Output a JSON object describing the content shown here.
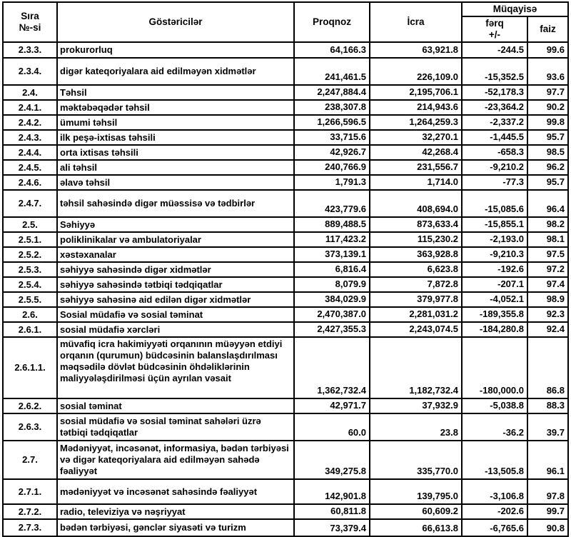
{
  "table": {
    "header": {
      "col_sira": "Sıra\n№-si",
      "col_gostericiler": "Göstəricilər",
      "col_proqnoz": "Proqnoz",
      "col_icra": "İcra",
      "col_muqayise": "Müqayisə",
      "col_ferq": "fərq\n+/-",
      "col_faiz": "faiz"
    },
    "rows": [
      {
        "no": "2.3.3.",
        "label": "prokurorluq",
        "proqnoz": "64,166.3",
        "icra": "63,921.8",
        "ferq": "-244.5",
        "faiz": "99.6"
      },
      {
        "no": "2.3.4.",
        "label": "digər kateqoriyalara aid edilməyən xidmətlər",
        "proqnoz": "241,461.5",
        "icra": "226,109.0",
        "ferq": "-15,352.5",
        "faiz": "93.6"
      },
      {
        "no": "2.4.",
        "label": "Təhsil",
        "proqnoz": "2,247,884.4",
        "icra": "2,195,706.1",
        "ferq": "-52,178.3",
        "faiz": "97.7"
      },
      {
        "no": "2.4.1.",
        "label": "məktəbəqədər təhsil",
        "proqnoz": "238,307.8",
        "icra": "214,943.6",
        "ferq": "-23,364.2",
        "faiz": "90.2"
      },
      {
        "no": "2.4.2.",
        "label": "ümumi təhsil",
        "proqnoz": "1,266,596.5",
        "icra": "1,264,259.3",
        "ferq": "-2,337.2",
        "faiz": "99.8"
      },
      {
        "no": "2.4.3.",
        "label": "ilk peşə-ixtisas təhsili",
        "proqnoz": "33,715.6",
        "icra": "32,270.1",
        "ferq": "-1,445.5",
        "faiz": "95.7"
      },
      {
        "no": "2.4.4.",
        "label": "orta ixtisas təhsili",
        "proqnoz": "42,926.7",
        "icra": "42,268.4",
        "ferq": "-658.3",
        "faiz": "98.5"
      },
      {
        "no": "2.4.5.",
        "label": "ali təhsil",
        "proqnoz": "240,766.9",
        "icra": "231,556.7",
        "ferq": "-9,210.2",
        "faiz": "96.2"
      },
      {
        "no": "2.4.6.",
        "label": "əlavə təhsil",
        "proqnoz": "1,791.3",
        "icra": "1,714.0",
        "ferq": "-77.3",
        "faiz": "95.7"
      },
      {
        "no": "2.4.7.",
        "label": "təhsil sahəsində digər müəssisə və tədbirlər",
        "proqnoz": "423,779.6",
        "icra": "408,694.0",
        "ferq": "-15,085.6",
        "faiz": "96.4"
      },
      {
        "no": "2.5.",
        "label": "Səhiyyə",
        "proqnoz": "889,488.5",
        "icra": "873,633.4",
        "ferq": "-15,855.1",
        "faiz": "98.2"
      },
      {
        "no": "2.5.1.",
        "label": "poliklinikalar və ambulatoriyalar",
        "proqnoz": "117,423.2",
        "icra": "115,230.2",
        "ferq": "-2,193.0",
        "faiz": "98.1"
      },
      {
        "no": "2.5.2.",
        "label": "xəstəxanalar",
        "proqnoz": "373,139.1",
        "icra": "363,928.8",
        "ferq": "-9,210.3",
        "faiz": "97.5"
      },
      {
        "no": "2.5.3.",
        "label": "səhiyyə sahəsində digər xidmətlər",
        "proqnoz": "6,816.4",
        "icra": "6,623.8",
        "ferq": "-192.6",
        "faiz": "97.2"
      },
      {
        "no": "2.5.4.",
        "label": "səhiyyə sahəsində tətbiqi tədqiqatlar",
        "proqnoz": "8,079.9",
        "icra": "7,872.8",
        "ferq": "-207.1",
        "faiz": "97.4"
      },
      {
        "no": "2.5.5.",
        "label": "səhiyyə sahəsinə aid edilən digər xidmətlər",
        "proqnoz": "384,029.9",
        "icra": "379,977.8",
        "ferq": "-4,052.1",
        "faiz": "98.9"
      },
      {
        "no": "2.6.",
        "label": "Sosial müdafiə və sosial təminat",
        "proqnoz": "2,470,387.0",
        "icra": "2,281,031.2",
        "ferq": "-189,355.8",
        "faiz": "92.3"
      },
      {
        "no": "2.6.1.",
        "label": "sosial müdafiə xərcləri",
        "proqnoz": "2,427,355.3",
        "icra": "2,243,074.5",
        "ferq": "-184,280.8",
        "faiz": "92.4"
      },
      {
        "no": "2.6.1.1.",
        "label": "müvafiq icra hakimiyyəti orqanının müəyyən etdiyi orqanın (qurumun) büdcəsinin balanslaşdırılması məqsədilə dövlət büdcəsinin öhdəliklərinin maliyyələşdirilməsi üçün ayrılan vəsait",
        "proqnoz": "1,362,732.4",
        "icra": "1,182,732.4",
        "ferq": "-180,000.0",
        "faiz": "86.8"
      },
      {
        "no": "2.6.2.",
        "label": "sosial təminat",
        "proqnoz": "42,971.7",
        "icra": "37,932.9",
        "ferq": "-5,038.8",
        "faiz": "88.3"
      },
      {
        "no": "2.6.3.",
        "label": "sosial müdafiə və sosial təminat sahələri üzrə tətbiqi tədqiqatlar",
        "proqnoz": "60.0",
        "icra": "23.8",
        "ferq": "-36.2",
        "faiz": "39.7"
      },
      {
        "no": "2.7.",
        "label": "Mədəniyyət, incəsənət, informasiya, bədən tərbiyəsi və digər kateqoriyalara aid edilməyən sahədə fəaliyyət",
        "proqnoz": "349,275.8",
        "icra": "335,770.0",
        "ferq": "-13,505.8",
        "faiz": "96.1"
      },
      {
        "no": "2.7.1.",
        "label": "mədəniyyət və incəsənət sahəsində fəaliyyət",
        "proqnoz": "142,901.8",
        "icra": "139,795.0",
        "ferq": "-3,106.8",
        "faiz": "97.8"
      },
      {
        "no": "2.7.2.",
        "label": "radio, televiziya və nəşriyyat",
        "proqnoz": "60,811.8",
        "icra": "60,609.2",
        "ferq": "-202.6",
        "faiz": "99.7"
      },
      {
        "no": "2.7.3.",
        "label": "bədən tərbiyəsi, gənclər siyasəti və turizm",
        "proqnoz": "73,379.4",
        "icra": "66,613.8",
        "ferq": "-6,765.6",
        "faiz": "90.8"
      }
    ]
  }
}
